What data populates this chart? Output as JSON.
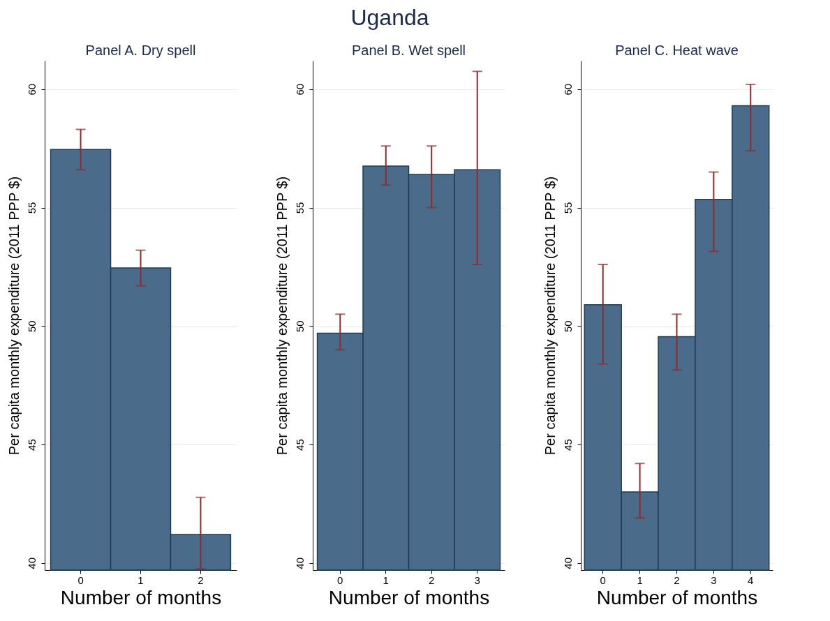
{
  "chart_data": [
    {
      "type": "bar",
      "annotations": [
        "Uganda"
      ],
      "title": "Panel A. Dry spell",
      "xlabel": "Number of months",
      "ylabel": "Per capita monthly expenditure (2011 PPP $)",
      "categories": [
        "0",
        "1",
        "2"
      ],
      "values": [
        57.45,
        52.45,
        41.2
      ],
      "errors": [
        [
          56.6,
          58.3
        ],
        [
          51.7,
          53.2
        ],
        [
          39.75,
          42.77
        ]
      ],
      "color": "#4a6b8a",
      "ylim": [
        39.7,
        61.2
      ],
      "yticks": [
        40,
        45,
        50,
        55,
        60
      ],
      "grid": "y"
    },
    {
      "type": "bar",
      "title": "Panel B. Wet spell",
      "xlabel": "Number of months",
      "ylabel": "Per capita monthly expenditure (2011 PPP $)",
      "categories": [
        "0",
        "1",
        "2",
        "3"
      ],
      "values": [
        49.7,
        56.75,
        56.4,
        56.6
      ],
      "errors": [
        [
          49.0,
          50.5
        ],
        [
          55.95,
          57.6
        ],
        [
          55.0,
          57.6
        ],
        [
          52.6,
          60.75
        ]
      ],
      "color": "#4a6b8a",
      "ylim": [
        39.7,
        61.2
      ],
      "yticks": [
        40,
        45,
        50,
        55,
        60
      ],
      "grid": "y"
    },
    {
      "type": "bar",
      "title": "Panel C. Heat wave",
      "xlabel": "Number of months",
      "ylabel": "Per capita monthly expenditure (2011 PPP $)",
      "categories": [
        "0",
        "1",
        "2",
        "3",
        "4"
      ],
      "values": [
        50.9,
        43.0,
        49.55,
        55.35,
        59.3
      ],
      "errors": [
        [
          48.4,
          52.6
        ],
        [
          41.9,
          44.2
        ],
        [
          48.15,
          50.5
        ],
        [
          53.15,
          56.5
        ],
        [
          57.4,
          60.2
        ]
      ],
      "color": "#4a6b8a",
      "ylim": [
        39.7,
        61.2
      ],
      "yticks": [
        40,
        45,
        50,
        55,
        60
      ],
      "grid": "y"
    }
  ]
}
